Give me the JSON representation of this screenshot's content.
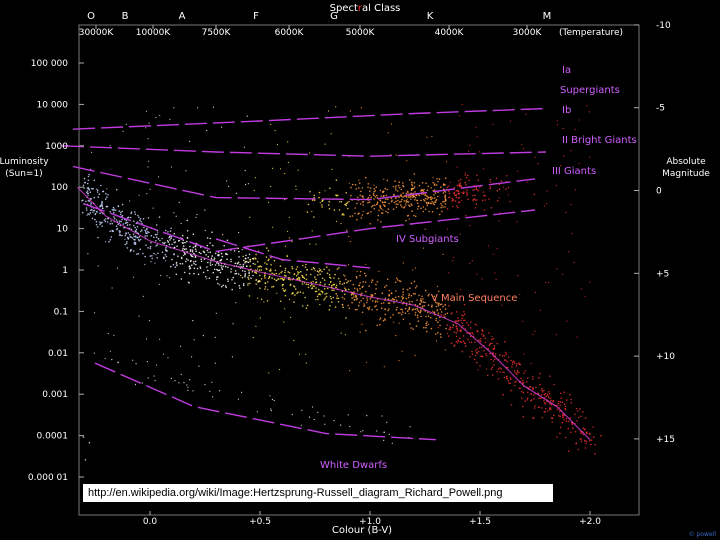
{
  "chart_data": {
    "type": "scatter",
    "title_parts": [
      "Spect",
      "r",
      "al Class"
    ],
    "spectral_classes": [
      "O",
      "B",
      "A",
      "F",
      "G",
      "K",
      "M"
    ],
    "temperature_ticks": [
      "30000K",
      "10000K",
      "7500K",
      "6000K",
      "5000K",
      "4000K",
      "3000K"
    ],
    "temperature_label": "(Temperature)",
    "ylabel_left": "Luminosity (Sun=1)",
    "yticks_left": [
      "100 000",
      "10 000",
      "1000",
      "100",
      "10",
      "1",
      "0.1",
      "0.01",
      "0.001",
      "0.0001",
      "0.000 01"
    ],
    "ylabel_right": "Absolute Magnitude",
    "yticks_right": [
      "-10",
      "-5",
      "0",
      "+5",
      "+10",
      "+15"
    ],
    "xlabel": "Colour (B-V)",
    "xticks": [
      "0.0",
      "+0.5",
      "+1.0",
      "+1.5",
      "+2.0"
    ],
    "xlim": [
      -0.5,
      2.2
    ],
    "ylim_log_luminosity": [
      -5,
      5
    ],
    "log_y": true,
    "regions": [
      {
        "label": "Ia",
        "segments": [
          [
            -0.35,
            3.4
          ],
          [
            0.5,
            3.6
          ],
          [
            1.2,
            3.78
          ],
          [
            1.8,
            3.9
          ]
        ]
      },
      {
        "label": "Supergiants",
        "segments": []
      },
      {
        "label": "Ib",
        "segments": [
          [
            -0.4,
            3.0
          ],
          [
            0.3,
            2.85
          ],
          [
            1.0,
            2.75
          ],
          [
            1.8,
            2.85
          ]
        ]
      },
      {
        "label": "II Bright Giants",
        "segments": [
          [
            -0.35,
            2.5
          ],
          [
            0.3,
            1.75
          ],
          [
            1.0,
            1.7
          ],
          [
            1.75,
            2.2
          ]
        ]
      },
      {
        "label": "III Giants",
        "segments": [
          [
            -0.3,
            1.6
          ],
          [
            0.3,
            0.45
          ],
          [
            1.0,
            1.0
          ],
          [
            1.75,
            1.45
          ]
        ]
      },
      {
        "label": "IV Subgiants",
        "segments": [
          [
            0.3,
            0.75
          ],
          [
            0.6,
            0.25
          ],
          [
            1.0,
            0.05
          ]
        ]
      },
      {
        "label": "V Main Sequence",
        "segments": []
      },
      {
        "label": "White Dwarfs",
        "segments": [
          [
            -0.25,
            -2.25
          ],
          [
            0.2,
            -3.3
          ],
          [
            0.8,
            -3.95
          ],
          [
            1.3,
            -4.1
          ]
        ]
      }
    ],
    "main_sequence_curve": [
      [
        -0.33,
        2.0
      ],
      [
        -0.2,
        1.3
      ],
      [
        0.0,
        0.7
      ],
      [
        0.3,
        0.2
      ],
      [
        0.5,
        -0.05
      ],
      [
        0.8,
        -0.4
      ],
      [
        1.0,
        -0.65
      ],
      [
        1.2,
        -0.85
      ],
      [
        1.4,
        -1.3
      ],
      [
        1.55,
        -2.0
      ],
      [
        1.7,
        -2.8
      ],
      [
        1.85,
        -3.3
      ],
      [
        2.0,
        -4.1
      ]
    ],
    "colors": {
      "hot": "#c8d8ff",
      "mid": "#ffffff",
      "yellow": "#ffe050",
      "orange": "#ff9a40",
      "red": "#e83030",
      "region": "#c03ce0"
    }
  },
  "source_url": "http://en.wikipedia.org/wiki/Image:Hertzsprung-Russell_diagram_Richard_Powell.png",
  "credit": "© powell"
}
